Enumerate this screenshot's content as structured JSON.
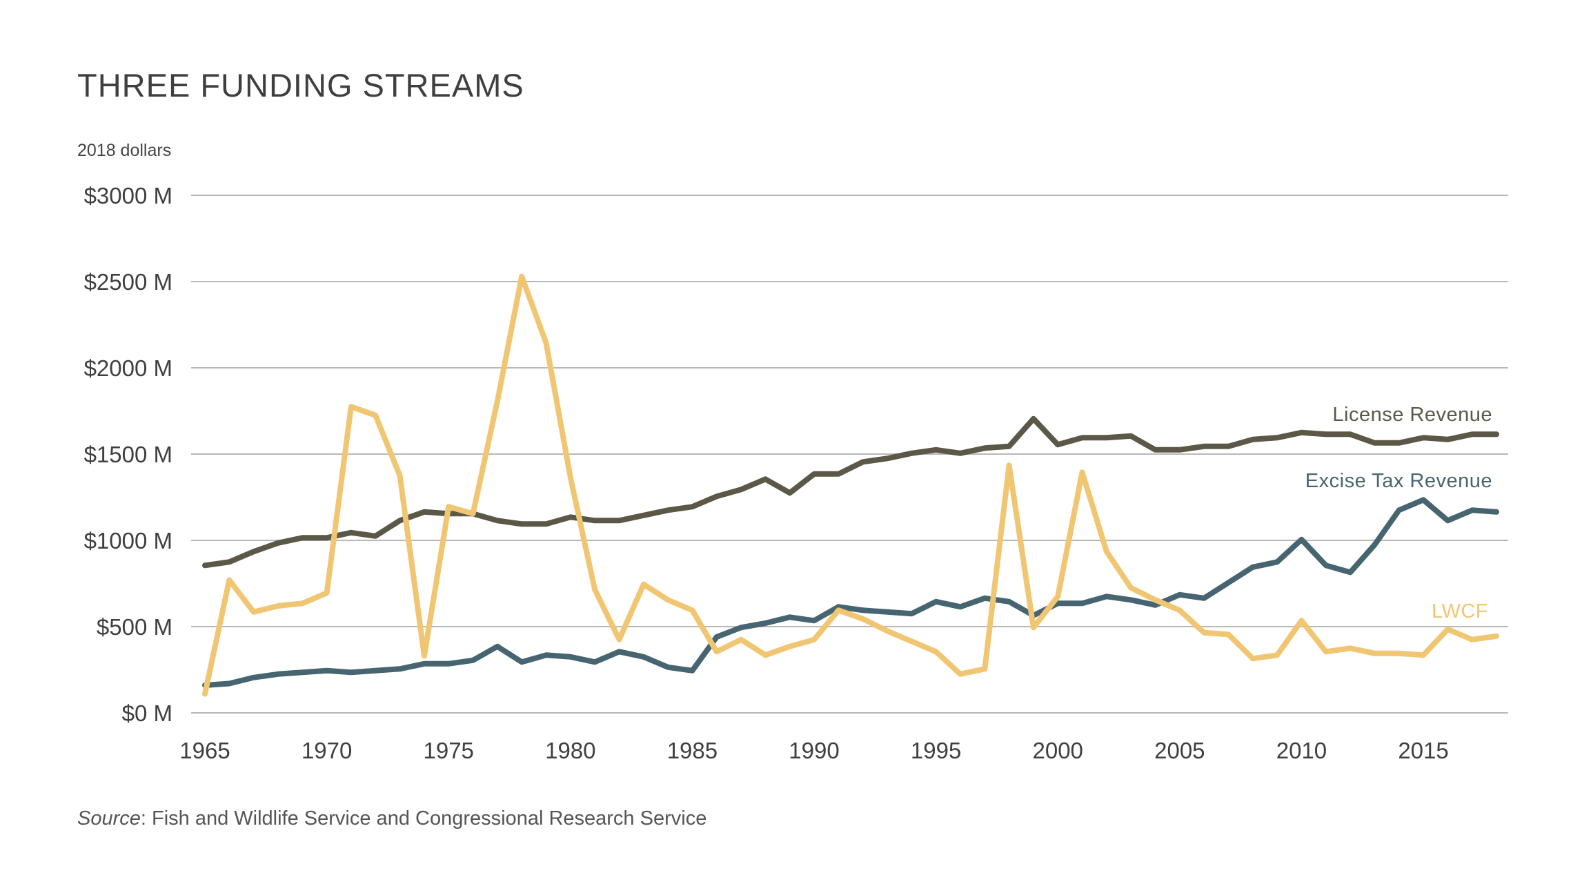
{
  "chart_data": {
    "type": "line",
    "title": "THREE FUNDING STREAMS",
    "unit_note": "2018 dollars",
    "ylim": [
      0,
      3000
    ],
    "xlim": [
      1965,
      2018
    ],
    "y_ticks": [
      {
        "value": 0,
        "label": "$0 M"
      },
      {
        "value": 500,
        "label": "$500 M"
      },
      {
        "value": 1000,
        "label": "$1000 M"
      },
      {
        "value": 1500,
        "label": "$1500 M"
      },
      {
        "value": 2000,
        "label": "$2000 M"
      },
      {
        "value": 2500,
        "label": "$2500 M"
      },
      {
        "value": 3000,
        "label": "$3000 M"
      }
    ],
    "x_ticks": [
      {
        "value": 1965,
        "label": "1965"
      },
      {
        "value": 1970,
        "label": "1970"
      },
      {
        "value": 1975,
        "label": "1975"
      },
      {
        "value": 1980,
        "label": "1980"
      },
      {
        "value": 1985,
        "label": "1985"
      },
      {
        "value": 1990,
        "label": "1990"
      },
      {
        "value": 1995,
        "label": "1995"
      },
      {
        "value": 2000,
        "label": "2000"
      },
      {
        "value": 2005,
        "label": "2005"
      },
      {
        "value": 2010,
        "label": "2010"
      },
      {
        "value": 2015,
        "label": "2015"
      }
    ],
    "grid": true,
    "x": [
      1965,
      1966,
      1967,
      1968,
      1969,
      1970,
      1971,
      1972,
      1973,
      1974,
      1975,
      1976,
      1977,
      1978,
      1979,
      1980,
      1981,
      1982,
      1983,
      1984,
      1985,
      1986,
      1987,
      1988,
      1989,
      1990,
      1991,
      1992,
      1993,
      1994,
      1995,
      1996,
      1997,
      1998,
      1999,
      2000,
      2001,
      2002,
      2003,
      2004,
      2005,
      2006,
      2007,
      2008,
      2009,
      2010,
      2011,
      2012,
      2013,
      2014,
      2015,
      2016,
      2017,
      2018
    ],
    "series": [
      {
        "name": "License Revenue",
        "color": "#5b5847",
        "values": [
          855,
          875,
          935,
          985,
          1015,
          1015,
          1045,
          1025,
          1115,
          1165,
          1155,
          1155,
          1115,
          1095,
          1095,
          1135,
          1115,
          1115,
          1145,
          1175,
          1195,
          1255,
          1295,
          1355,
          1275,
          1385,
          1385,
          1455,
          1475,
          1505,
          1525,
          1505,
          1535,
          1545,
          1705,
          1555,
          1595,
          1595,
          1605,
          1525,
          1525,
          1545,
          1545,
          1585,
          1595,
          1625,
          1615,
          1615,
          1565,
          1565,
          1595,
          1585,
          1615,
          1615
        ]
      },
      {
        "name": "Excise Tax Revenue",
        "color": "#476570",
        "values": [
          160,
          170,
          205,
          225,
          235,
          245,
          235,
          245,
          255,
          285,
          285,
          305,
          385,
          295,
          335,
          325,
          295,
          355,
          325,
          265,
          245,
          440,
          495,
          520,
          555,
          535,
          615,
          595,
          585,
          575,
          645,
          615,
          665,
          645,
          565,
          635,
          635,
          675,
          655,
          625,
          685,
          665,
          755,
          845,
          875,
          1005,
          855,
          815,
          975,
          1175,
          1235,
          1115,
          1175,
          1165
        ]
      },
      {
        "name": "LWCF",
        "color": "#f1c672",
        "values": [
          110,
          770,
          585,
          620,
          635,
          695,
          1775,
          1725,
          1375,
          330,
          1195,
          1155,
          1805,
          2530,
          2145,
          1365,
          715,
          425,
          745,
          655,
          595,
          355,
          425,
          335,
          385,
          425,
          595,
          545,
          475,
          415,
          355,
          225,
          255,
          1435,
          495,
          675,
          1395,
          935,
          725,
          655,
          595,
          465,
          455,
          315,
          335,
          535,
          355,
          375,
          345,
          345,
          335,
          485,
          425,
          445
        ]
      }
    ],
    "series_labels": [
      {
        "series": "License Revenue",
        "text": "License Revenue"
      },
      {
        "series": "Excise Tax Revenue",
        "text": "Excise Tax Revenue"
      },
      {
        "series": "LWCF",
        "text": "LWCF"
      }
    ]
  },
  "source": {
    "label": "Source",
    "text": ": Fish and Wildlife Service and Congressional Research Service"
  },
  "colors": {
    "grid": "#b8b8b8",
    "axis_text": "#3f3f3f"
  }
}
